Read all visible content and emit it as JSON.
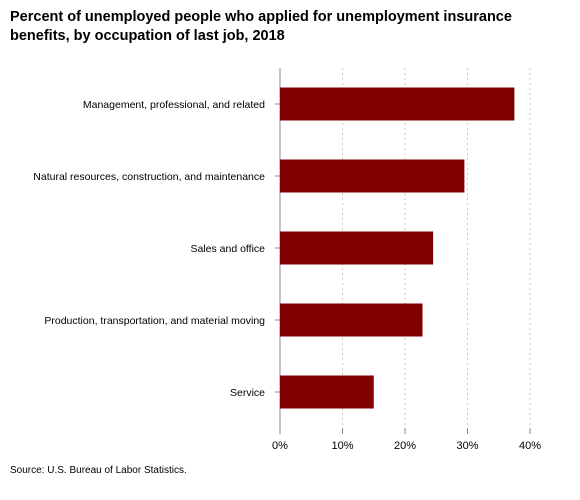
{
  "title": "Percent of unemployed people who applied for unemployment insurance\nbenefits, by occupation of last job, 2018",
  "source": "Source: U.S. Bureau of Labor Statistics.",
  "colors": {
    "bar": "#800000",
    "grid": "#c8c8c8",
    "axis": "#888888"
  },
  "chart_data": {
    "type": "bar",
    "orientation": "horizontal",
    "title": "Percent of unemployed people who applied for unemployment insurance benefits, by occupation of last job, 2018",
    "xlabel": "",
    "ylabel": "",
    "categories": [
      "Management, professional, and related",
      "Natural resources, construction, and maintenance",
      "Sales and office",
      "Production, transportation, and material moving",
      "Service"
    ],
    "values": [
      37.5,
      29.5,
      24.5,
      22.8,
      15.0
    ],
    "xlim": [
      0,
      40
    ],
    "ticks": [
      0,
      10,
      20,
      30,
      40
    ],
    "tick_labels": [
      "0%",
      "10%",
      "20%",
      "30%",
      "40%"
    ],
    "grid": "vertical-dotted",
    "legend": "none"
  }
}
